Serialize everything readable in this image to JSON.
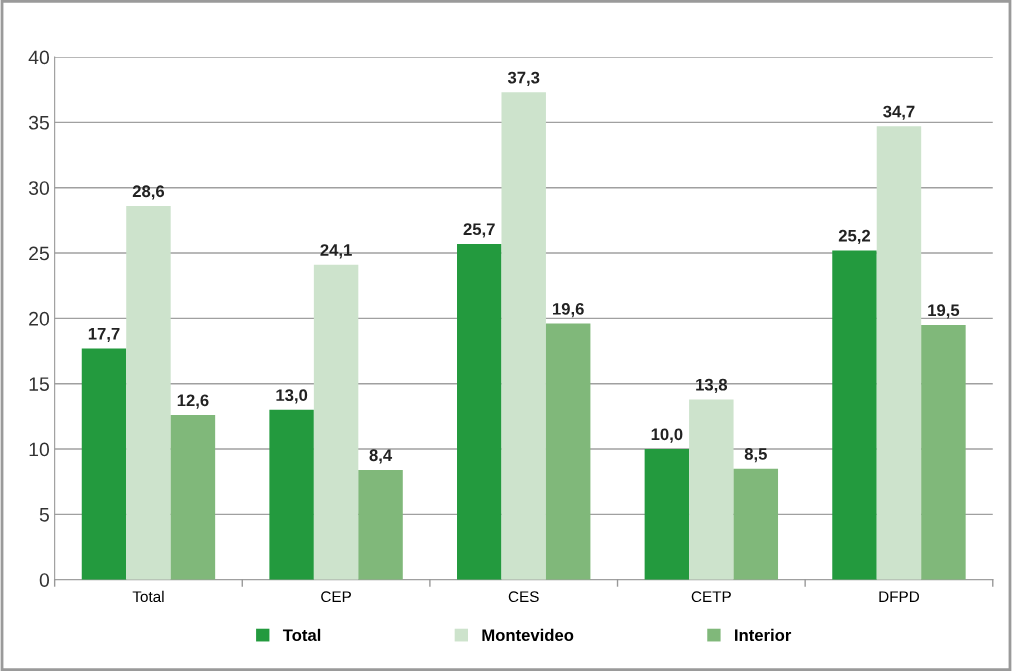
{
  "chart_data": {
    "type": "bar",
    "categories": [
      "Total",
      "CEP",
      "CES",
      "CETP",
      "DFPD"
    ],
    "series": [
      {
        "name": "Total",
        "color": "#239a3e",
        "values": [
          17.7,
          13.0,
          25.7,
          10.0,
          25.2
        ],
        "value_labels": [
          "17,7",
          "13,0",
          "25,7",
          "10,0",
          "25,2"
        ]
      },
      {
        "name": "Montevideo",
        "color": "#cde3cc",
        "values": [
          28.6,
          24.1,
          37.3,
          13.8,
          34.7
        ],
        "value_labels": [
          "28,6",
          "24,1",
          "37,3",
          "13,8",
          "34,7"
        ]
      },
      {
        "name": "Interior",
        "color": "#80b87a",
        "values": [
          12.6,
          8.4,
          19.6,
          8.5,
          19.5
        ],
        "value_labels": [
          "12,6",
          "8,4",
          "19,6",
          "8,5",
          "19,5"
        ]
      }
    ],
    "ylim": [
      0,
      40
    ],
    "yticks": [
      0,
      5,
      10,
      15,
      20,
      25,
      30,
      35,
      40
    ],
    "grid": "y",
    "legend": "bottom"
  }
}
